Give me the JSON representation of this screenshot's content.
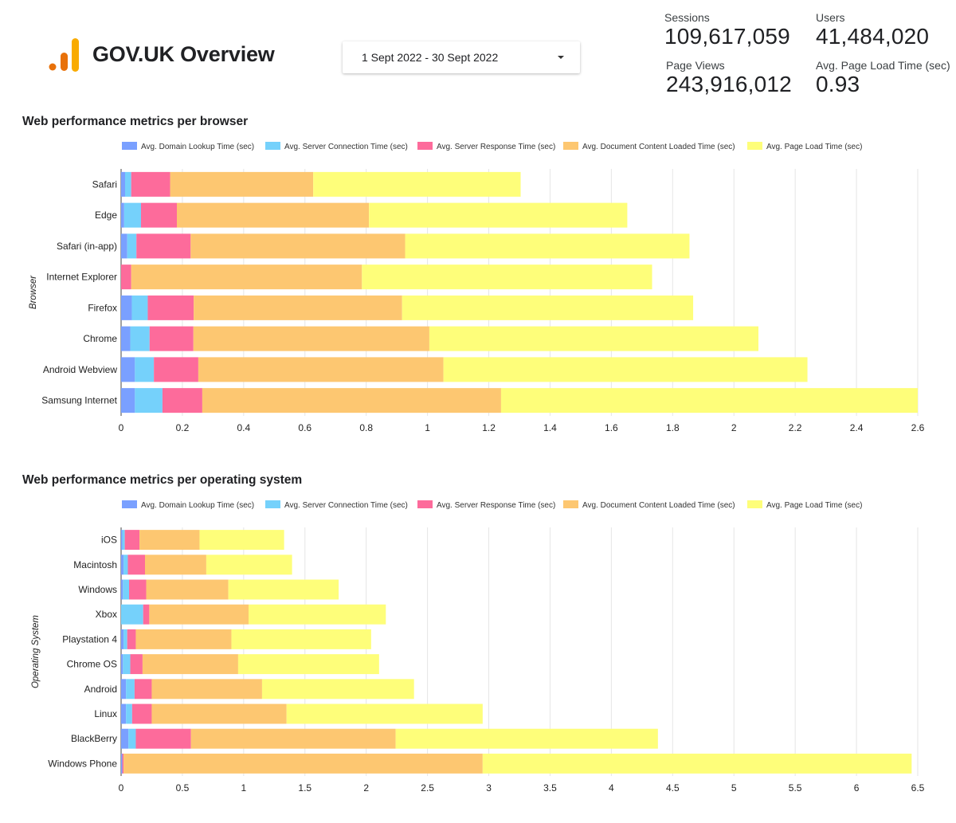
{
  "app": {
    "title": "GOV.UK Overview"
  },
  "date_range": {
    "label": "1 Sept 2022 - 30 Sept 2022"
  },
  "kpis": {
    "sessions": {
      "label": "Sessions",
      "value": "109,617,059"
    },
    "users": {
      "label": "Users",
      "value": "41,484,020"
    },
    "page_views": {
      "label": "Page Views",
      "value": "243,916,012"
    },
    "avg_load": {
      "label": "Avg. Page Load Time (sec)",
      "value": "0.93"
    }
  },
  "colors": {
    "domain_lookup": "#7aa0ff",
    "server_connection": "#75d1fb",
    "server_response": "#fd6b9b",
    "dom_content_loaded": "#fdc771",
    "page_load": "#fefe7a",
    "grid": "#e6e6e6",
    "logo_dark": "#e8710a",
    "logo_light": "#f9ab00"
  },
  "chart_data": [
    {
      "type": "bar",
      "orientation": "horizontal",
      "stacked": true,
      "title": "Web performance metrics per browser",
      "ylabel": "Browser",
      "xlabel": "",
      "xlim": [
        0,
        2.6
      ],
      "xticks": [
        0,
        0.2,
        0.4,
        0.6,
        0.8,
        1,
        1.2,
        1.4,
        1.6,
        1.8,
        2,
        2.2,
        2.4,
        2.6
      ],
      "legend_position": "top",
      "categories": [
        "Safari",
        "Edge",
        "Safari (in-app)",
        "Internet Explorer",
        "Firefox",
        "Chrome",
        "Android Webview",
        "Samsung Internet"
      ],
      "series": [
        {
          "name": "Avg. Domain Lookup Time (sec)",
          "color_key": "domain_lookup",
          "values": [
            0.013,
            0.01,
            0.02,
            0.0,
            0.035,
            0.03,
            0.045,
            0.045
          ]
        },
        {
          "name": "Avg. Server Connection Time (sec)",
          "color_key": "server_connection",
          "values": [
            0.02,
            0.055,
            0.03,
            0.0,
            0.052,
            0.063,
            0.062,
            0.09
          ]
        },
        {
          "name": "Avg. Server Response Time (sec)",
          "color_key": "server_response",
          "values": [
            0.127,
            0.117,
            0.177,
            0.033,
            0.15,
            0.143,
            0.145,
            0.13
          ]
        },
        {
          "name": "Avg. Document Content Loaded Time (sec)",
          "color_key": "dom_content_loaded",
          "values": [
            0.467,
            0.627,
            0.7,
            0.753,
            0.68,
            0.77,
            0.8,
            0.975
          ]
        },
        {
          "name": "Avg. Page Load Time (sec)",
          "color_key": "page_load",
          "values": [
            0.677,
            0.843,
            0.928,
            0.947,
            0.95,
            1.074,
            1.188,
            1.36
          ]
        }
      ]
    },
    {
      "type": "bar",
      "orientation": "horizontal",
      "stacked": true,
      "title": "Web performance metrics per operating system",
      "ylabel": "Operating System",
      "xlabel": "",
      "xlim": [
        0,
        6.5
      ],
      "xticks": [
        0,
        0.5,
        1,
        1.5,
        2,
        2.5,
        3,
        3.5,
        4,
        4.5,
        5,
        5.5,
        6,
        6.5
      ],
      "legend_position": "top",
      "categories": [
        "iOS",
        "Macintosh",
        "Windows",
        "Xbox",
        "Playstation 4",
        "Chrome OS",
        "Android",
        "Linux",
        "BlackBerry",
        "Windows Phone"
      ],
      "series": [
        {
          "name": "Avg. Domain Lookup Time (sec)",
          "color_key": "domain_lookup",
          "values": [
            0.01,
            0.02,
            0.015,
            0.0,
            0.02,
            0.015,
            0.04,
            0.04,
            0.06,
            0.01
          ]
        },
        {
          "name": "Avg. Server Connection Time (sec)",
          "color_key": "server_connection",
          "values": [
            0.02,
            0.035,
            0.05,
            0.18,
            0.03,
            0.06,
            0.07,
            0.05,
            0.06,
            0.0
          ]
        },
        {
          "name": "Avg. Server Response Time (sec)",
          "color_key": "server_response",
          "values": [
            0.12,
            0.14,
            0.14,
            0.05,
            0.07,
            0.1,
            0.14,
            0.16,
            0.45,
            0.01
          ]
        },
        {
          "name": "Avg. Document Content Loaded Time (sec)",
          "color_key": "dom_content_loaded",
          "values": [
            0.49,
            0.5,
            0.67,
            0.81,
            0.78,
            0.78,
            0.9,
            1.1,
            1.67,
            2.93
          ]
        },
        {
          "name": "Avg. Page Load Time (sec)",
          "color_key": "page_load",
          "values": [
            0.69,
            0.7,
            0.9,
            1.12,
            1.14,
            1.15,
            1.24,
            1.6,
            2.14,
            3.5
          ]
        }
      ]
    }
  ]
}
